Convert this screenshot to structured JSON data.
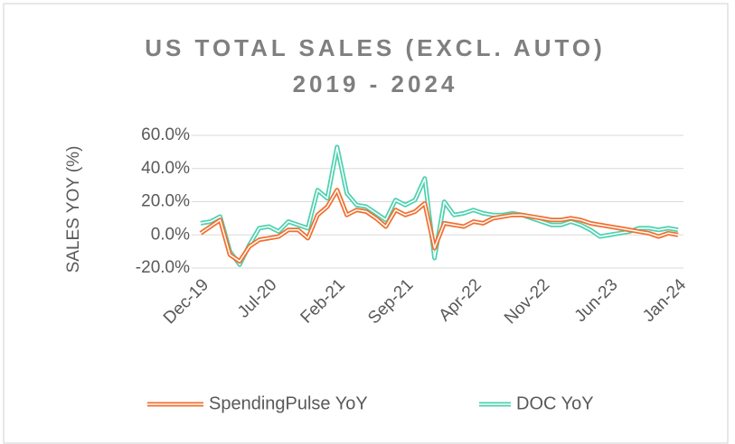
{
  "chart_data": {
    "type": "line",
    "title": "US TOTAL SALES (EXCL. AUTO)",
    "subtitle": "2019 - 2024",
    "y_label": "SALES YOY (%)",
    "categories": [
      "Dec-19",
      null,
      null,
      null,
      null,
      null,
      null,
      "Jul-20",
      null,
      null,
      null,
      null,
      null,
      null,
      "Feb-21",
      null,
      null,
      null,
      null,
      null,
      null,
      "Sep-21",
      null,
      null,
      null,
      null,
      null,
      null,
      "Apr-22",
      null,
      null,
      null,
      null,
      null,
      null,
      "Nov-22",
      null,
      null,
      null,
      null,
      null,
      null,
      "Jun-23",
      null,
      null,
      null,
      null,
      null,
      null,
      "Jan-24"
    ],
    "series": [
      {
        "name": "SpendingPulse YoY",
        "color": "#f07030",
        "values": [
          1,
          5,
          9,
          -12,
          -16,
          -7,
          -3,
          -2,
          -1,
          3,
          3,
          -2,
          12,
          17,
          27,
          12,
          15,
          14,
          10,
          5,
          15,
          12,
          14,
          19,
          -8,
          7,
          6,
          5,
          8,
          7,
          10,
          11,
          12,
          12,
          11,
          10,
          9,
          9,
          10,
          9,
          7,
          6,
          5,
          4,
          3,
          2,
          1,
          -1,
          1,
          0
        ]
      },
      {
        "name": "DOC YoY",
        "color": "#4fd1b0",
        "values": [
          7,
          8,
          11,
          -10,
          -18,
          -6,
          4,
          5,
          2,
          8,
          6,
          4,
          27,
          22,
          53,
          25,
          18,
          17,
          13,
          9,
          21,
          18,
          21,
          34,
          -14,
          20,
          12,
          13,
          15,
          13,
          12,
          12,
          13,
          12,
          10,
          8,
          6,
          6,
          8,
          6,
          3,
          -1,
          0,
          1,
          2,
          4,
          4,
          3,
          4,
          3
        ]
      }
    ],
    "ylim": [
      -20,
      60
    ],
    "yticks": [
      {
        "value": -20,
        "label": "-20.0%"
      },
      {
        "value": 0,
        "label": "0.0%"
      },
      {
        "value": 20,
        "label": "20.0%"
      },
      {
        "value": 40,
        "label": "40.0%"
      },
      {
        "value": 60,
        "label": "60.0%"
      }
    ],
    "grid": true,
    "legend": "bottom"
  }
}
